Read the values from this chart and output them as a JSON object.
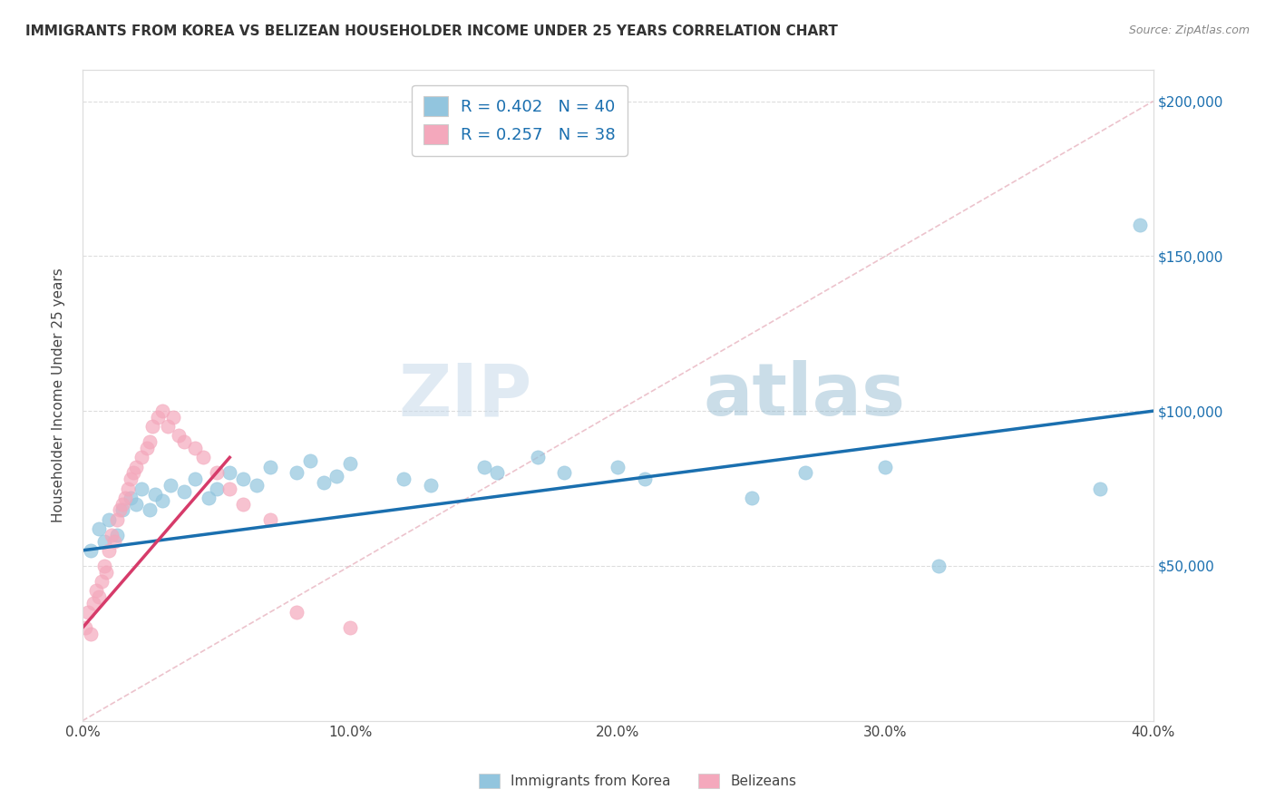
{
  "title": "IMMIGRANTS FROM KOREA VS BELIZEAN HOUSEHOLDER INCOME UNDER 25 YEARS CORRELATION CHART",
  "source": "Source: ZipAtlas.com",
  "ylabel": "Householder Income Under 25 years",
  "xlim": [
    0.0,
    0.4
  ],
  "ylim": [
    0,
    210000
  ],
  "xtick_labels": [
    "0.0%",
    "10.0%",
    "20.0%",
    "30.0%",
    "40.0%"
  ],
  "xtick_vals": [
    0.0,
    0.1,
    0.2,
    0.3,
    0.4
  ],
  "ytick_labels": [
    "$50,000",
    "$100,000",
    "$150,000",
    "$200,000"
  ],
  "ytick_vals": [
    50000,
    100000,
    150000,
    200000
  ],
  "watermark_zip": "ZIP",
  "watermark_atlas": "atlas",
  "legend_blue_label": "R = 0.402   N = 40",
  "legend_pink_label": "R = 0.257   N = 38",
  "blue_color": "#92c5de",
  "pink_color": "#f4a8bc",
  "trendline_blue_color": "#1a6faf",
  "trendline_pink_color": "#d63b6a",
  "diag_color": "#e8b4c0",
  "korea_x": [
    0.003,
    0.006,
    0.008,
    0.01,
    0.013,
    0.015,
    0.018,
    0.02,
    0.022,
    0.025,
    0.027,
    0.03,
    0.033,
    0.038,
    0.042,
    0.047,
    0.05,
    0.055,
    0.06,
    0.065,
    0.07,
    0.08,
    0.085,
    0.09,
    0.095,
    0.1,
    0.12,
    0.13,
    0.15,
    0.155,
    0.17,
    0.18,
    0.2,
    0.21,
    0.25,
    0.27,
    0.3,
    0.32,
    0.38,
    0.395
  ],
  "korea_y": [
    55000,
    62000,
    58000,
    65000,
    60000,
    68000,
    72000,
    70000,
    75000,
    68000,
    73000,
    71000,
    76000,
    74000,
    78000,
    72000,
    75000,
    80000,
    78000,
    76000,
    82000,
    80000,
    84000,
    77000,
    79000,
    83000,
    78000,
    76000,
    82000,
    80000,
    85000,
    80000,
    82000,
    78000,
    72000,
    80000,
    82000,
    50000,
    75000,
    160000
  ],
  "belize_x": [
    0.001,
    0.002,
    0.003,
    0.004,
    0.005,
    0.006,
    0.007,
    0.008,
    0.009,
    0.01,
    0.011,
    0.012,
    0.013,
    0.014,
    0.015,
    0.016,
    0.017,
    0.018,
    0.019,
    0.02,
    0.022,
    0.024,
    0.025,
    0.026,
    0.028,
    0.03,
    0.032,
    0.034,
    0.036,
    0.038,
    0.042,
    0.045,
    0.05,
    0.055,
    0.06,
    0.07,
    0.08,
    0.1
  ],
  "belize_y": [
    30000,
    35000,
    28000,
    38000,
    42000,
    40000,
    45000,
    50000,
    48000,
    55000,
    60000,
    58000,
    65000,
    68000,
    70000,
    72000,
    75000,
    78000,
    80000,
    82000,
    85000,
    88000,
    90000,
    95000,
    98000,
    100000,
    95000,
    98000,
    92000,
    90000,
    88000,
    85000,
    80000,
    75000,
    70000,
    65000,
    35000,
    30000
  ]
}
